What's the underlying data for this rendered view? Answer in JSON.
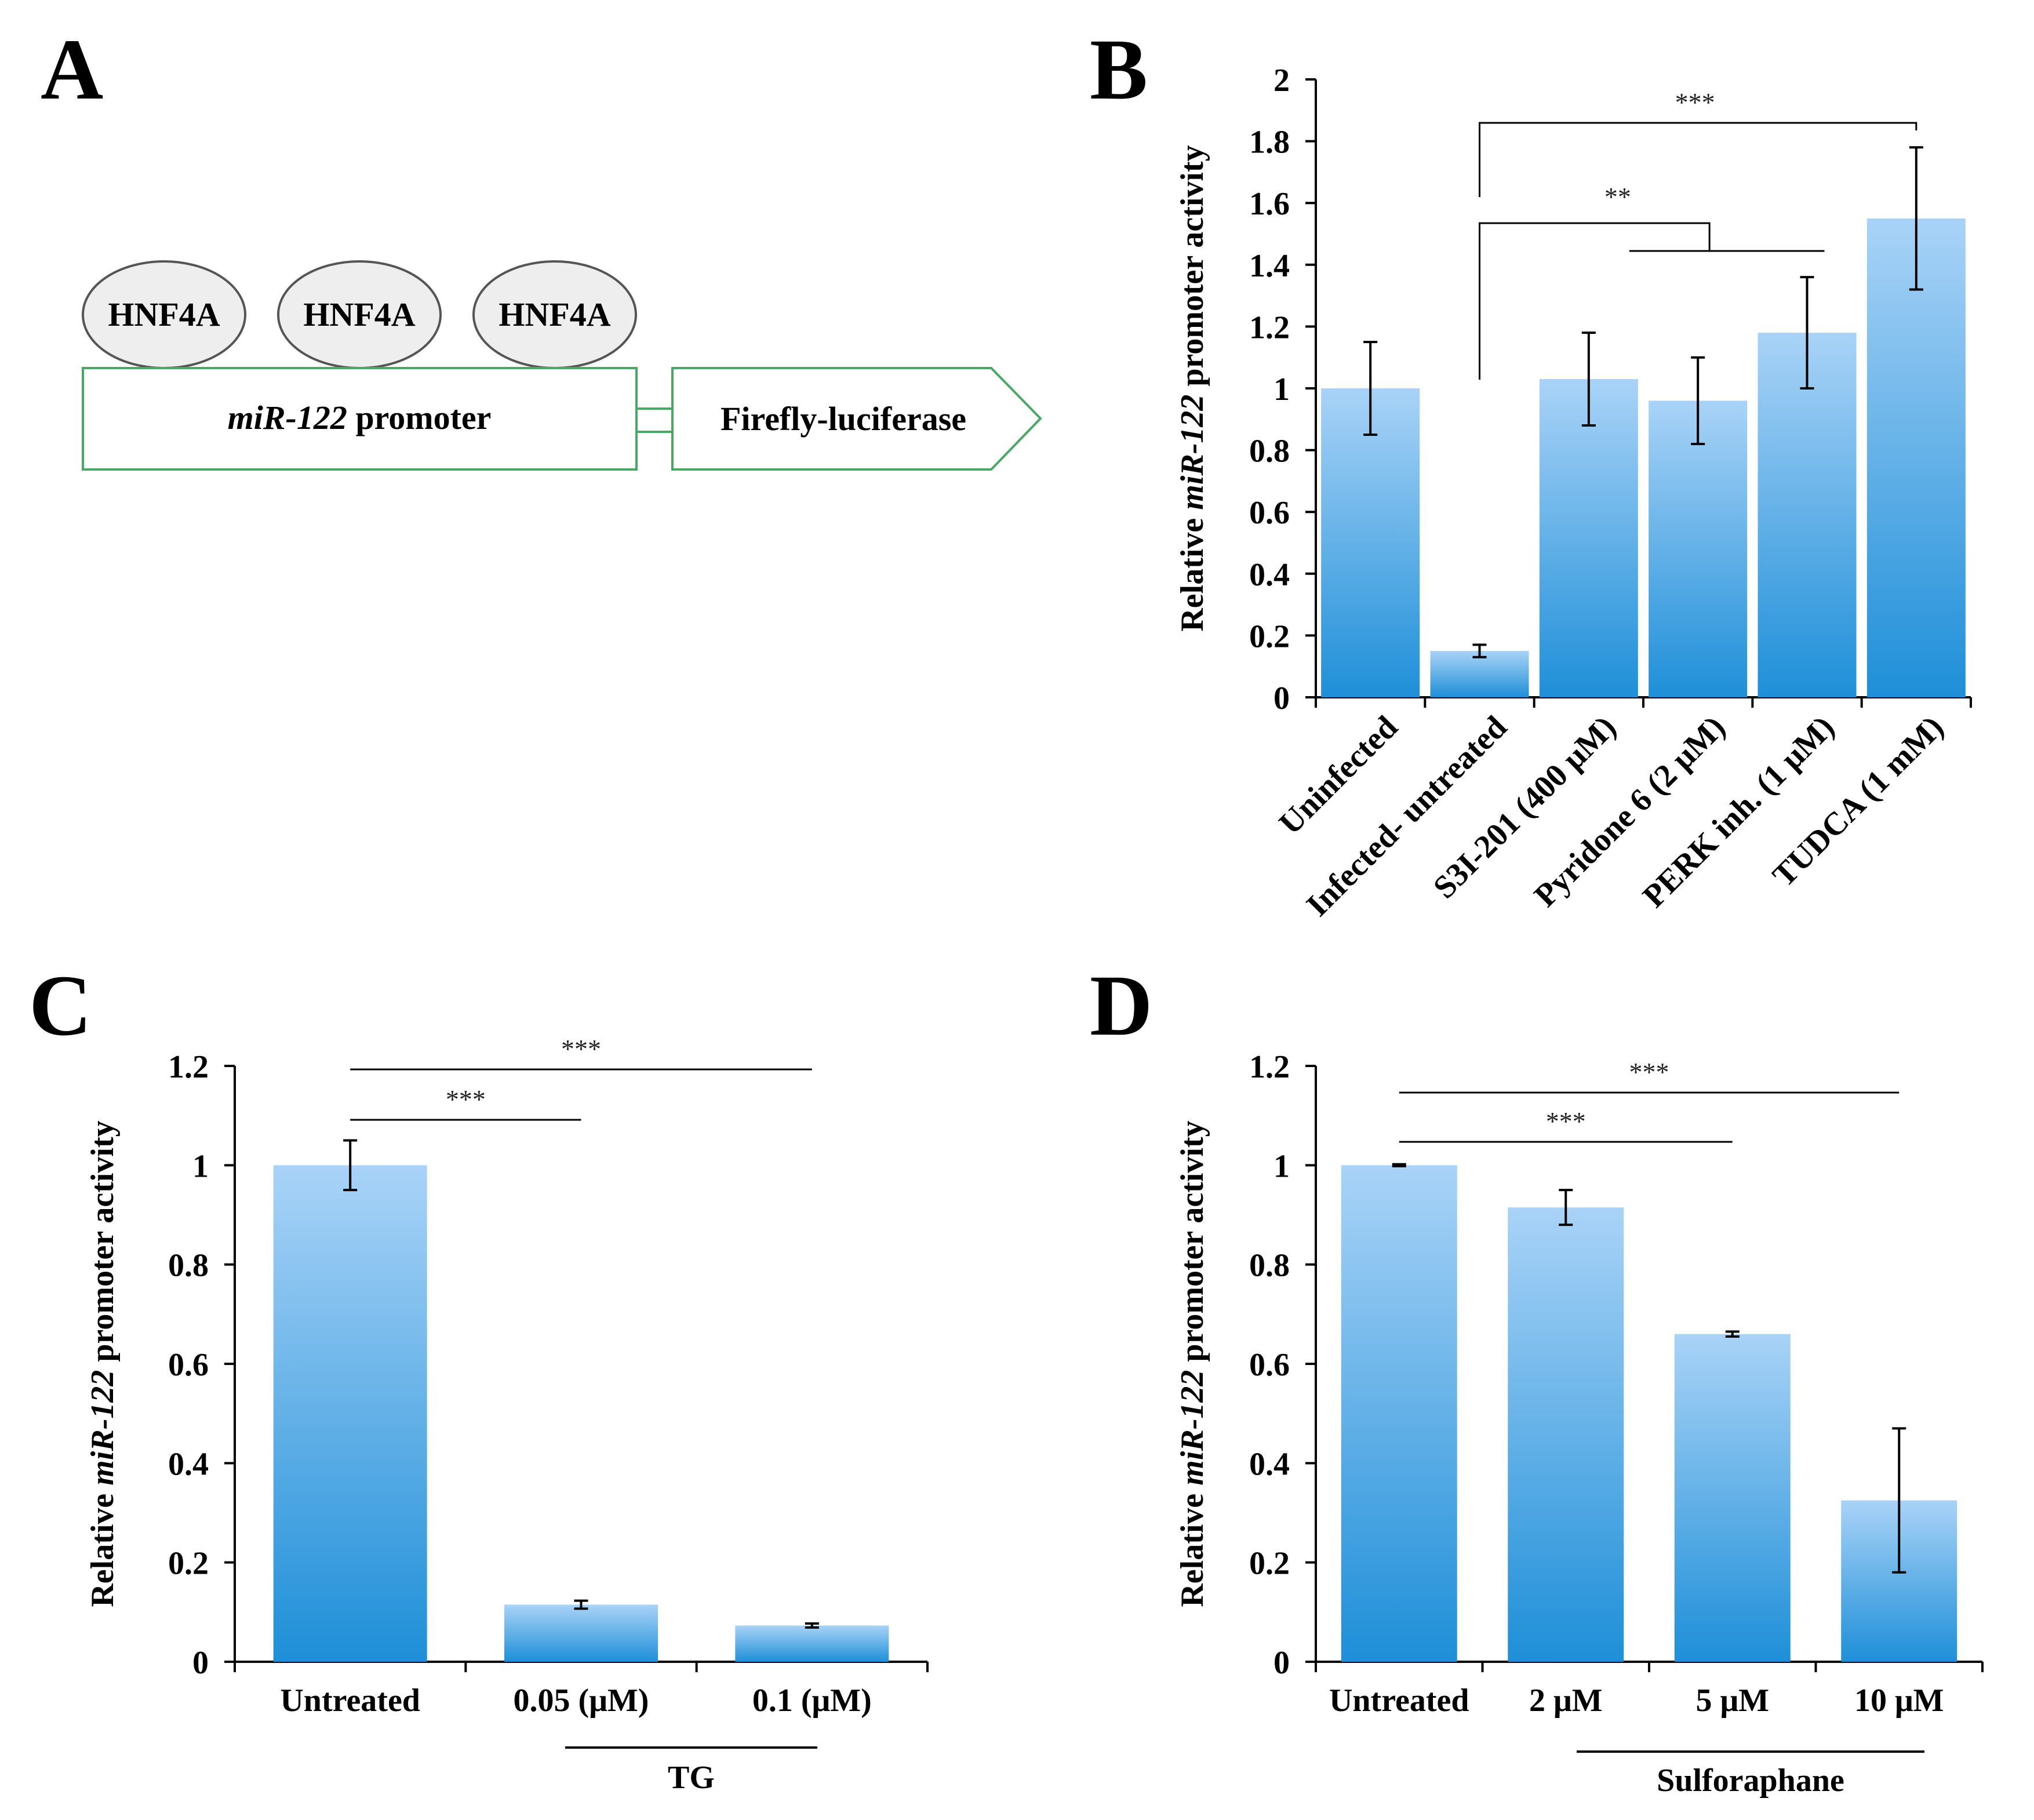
{
  "panels": {
    "A": {
      "label": "A",
      "sites": [
        "HNF4A",
        "HNF4A",
        "HNF4A"
      ],
      "promoter": {
        "gene": "miR-122",
        "suffix": " promoter"
      },
      "reporter": "Firefly-luciferase",
      "colors": {
        "box_stroke": "#4aa866"
      }
    },
    "B": {
      "label": "B"
    },
    "C": {
      "label": "C"
    },
    "D": {
      "label": "D"
    }
  },
  "chart_data": [
    {
      "panel": "B",
      "type": "bar",
      "ylabel_prefix": "Relative ",
      "ylabel_gene": "miR-122",
      "ylabel_suffix": " promoter activity",
      "ylim": [
        0,
        2
      ],
      "yticks": [
        "0",
        "0.2",
        "0.4",
        "0.6",
        "0.8",
        "1",
        "1.2",
        "1.4",
        "1.6",
        "1.8",
        "2"
      ],
      "categories": [
        "Uninfected",
        "Infected- untreated",
        "S3I-201 (400 μM)",
        "Pyridone 6 (2 μM)",
        "PERK inh. (1 μM)",
        "TUDCA (1 mM)"
      ],
      "values": [
        1.0,
        0.15,
        1.03,
        0.96,
        1.18,
        1.55
      ],
      "errors": [
        0.15,
        0.02,
        0.15,
        0.14,
        0.18,
        0.23
      ],
      "bar_color_top": "#a9d3f7",
      "bar_color_bottom": "#1e8fd8",
      "significance": [
        "***",
        "**"
      ]
    },
    {
      "panel": "C",
      "type": "bar",
      "ylabel_prefix": "Relative ",
      "ylabel_gene": "miR-122",
      "ylabel_suffix": " promoter activity",
      "ylim": [
        0,
        1.2
      ],
      "yticks": [
        "0",
        "0.2",
        "0.4",
        "0.6",
        "0.8",
        "1",
        "1.2"
      ],
      "categories": [
        "Untreated",
        "0.05 (μM)",
        "0.1 (μM)"
      ],
      "values": [
        1.0,
        0.115,
        0.073
      ],
      "errors": [
        0.05,
        0.008,
        0.004
      ],
      "group_label": "TG",
      "bar_color_top": "#a9d3f7",
      "bar_color_bottom": "#1e8fd8",
      "significance": [
        "***",
        "***"
      ]
    },
    {
      "panel": "D",
      "type": "bar",
      "ylabel_prefix": "Relative ",
      "ylabel_gene": "miR-122",
      "ylabel_suffix": " promoter activity",
      "ylim": [
        0,
        1.2
      ],
      "yticks": [
        "0",
        "0.2",
        "0.4",
        "0.6",
        "0.8",
        "1",
        "1.2"
      ],
      "categories": [
        "Untreated",
        "2 μM",
        "5 μM",
        "10 μM"
      ],
      "values": [
        1.0,
        0.915,
        0.66,
        0.325
      ],
      "errors": [
        0.002,
        0.035,
        0.005,
        0.145
      ],
      "group_label": "Sulforaphane",
      "bar_color_top": "#a9d3f7",
      "bar_color_bottom": "#1e8fd8",
      "significance": [
        "***",
        "***"
      ]
    }
  ]
}
